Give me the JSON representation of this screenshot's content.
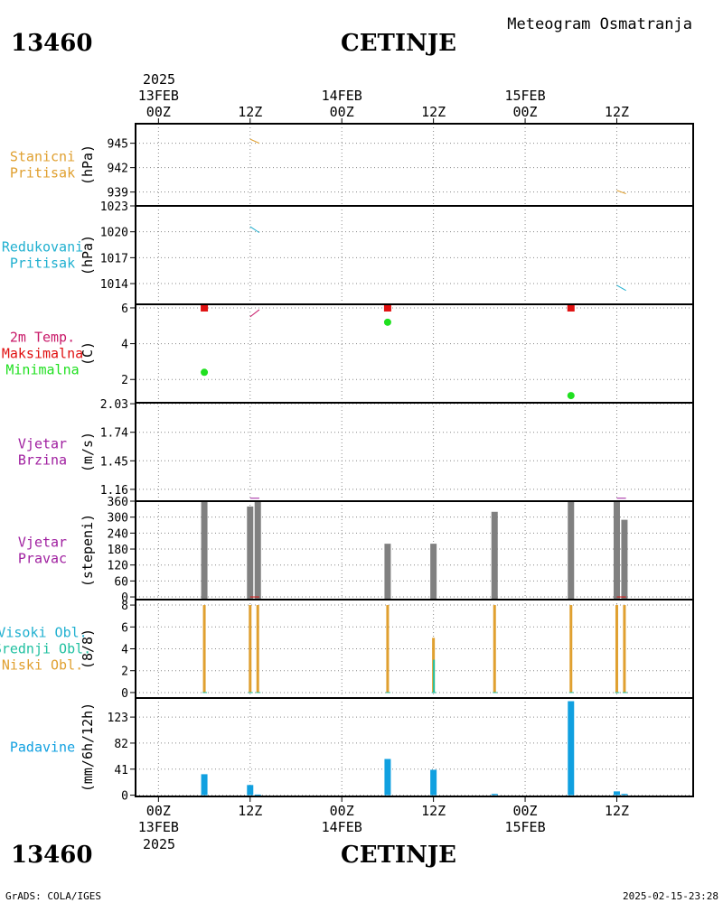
{
  "header": {
    "station_id": "13460",
    "station_name": "CETINJE",
    "chart_title": "Meteogram Osmatranja"
  },
  "footer": {
    "station_id": "13460",
    "station_name": "CETINJE",
    "credit": "GrADS: COLA/IGES",
    "timestamp": "2025-02-15-23:28"
  },
  "colors": {
    "station_pressure": "#e0a030",
    "reduced_pressure": "#20b0d0",
    "temp_line": "#c81868",
    "temp_max": "#e01010",
    "temp_min": "#20e020",
    "wind_speed": "#a020a0",
    "wind_dir": "#808080",
    "cloud_high": "#20b0d0",
    "cloud_mid": "#20c0a0",
    "cloud_low": "#e0a030",
    "precip": "#10a0e0",
    "precip_label": "#10a0e0"
  },
  "time_axis": {
    "top_year": "2025",
    "bottom_year": "2025",
    "ticks": [
      {
        "hour": 0,
        "label": "00Z",
        "date": "13FEB"
      },
      {
        "hour": 12,
        "label": "12Z",
        "date": ""
      },
      {
        "hour": 24,
        "label": "00Z",
        "date": "14FEB"
      },
      {
        "hour": 36,
        "label": "12Z",
        "date": ""
      },
      {
        "hour": 48,
        "label": "00Z",
        "date": "15FEB"
      },
      {
        "hour": 60,
        "label": "12Z",
        "date": ""
      }
    ],
    "range_hours": [
      -3,
      70
    ]
  },
  "chart_data": [
    {
      "id": "station_pressure",
      "type": "line",
      "labels": [
        "Stanicni",
        "Pritisak"
      ],
      "label_colors": [
        "#e0a030",
        "#e0a030"
      ],
      "ylabel": "(hPa)",
      "ylim": [
        937.3,
        947.4
      ],
      "yticks": [
        945,
        942,
        939
      ],
      "series": [
        {
          "segments": [
            [
              [
                12.0,
                945.5
              ],
              [
                13.2,
                945.0
              ]
            ],
            [
              [
                60.0,
                939.2
              ],
              [
                61.2,
                938.8
              ]
            ]
          ]
        }
      ]
    },
    {
      "id": "reduced_pressure",
      "type": "line",
      "labels": [
        "Redukovani",
        "Pritisak"
      ],
      "label_colors": [
        "#20b0d0",
        "#20b0d0"
      ],
      "ylabel": "(hPa)",
      "ylim": [
        1011.6,
        1023.0
      ],
      "yticks": [
        1023,
        1020,
        1017,
        1014
      ],
      "series": [
        {
          "segments": [
            [
              [
                12.0,
                1020.6
              ],
              [
                13.2,
                1019.9
              ]
            ],
            [
              [
                60.0,
                1013.8
              ],
              [
                61.2,
                1013.2
              ]
            ]
          ]
        }
      ]
    },
    {
      "id": "temperature",
      "type": "scatter",
      "labels": [
        "2m Temp.",
        "Maksimalna",
        "Minimalna"
      ],
      "label_colors": [
        "#c81868",
        "#e01010",
        "#20e020"
      ],
      "ylabel": "(C)",
      "ylim": [
        0.7,
        6.2
      ],
      "yticks": [
        6,
        4,
        2
      ],
      "line_segments": [
        [
          [
            12.0,
            5.5
          ],
          [
            13.2,
            5.9
          ]
        ]
      ],
      "max_points": [
        [
          6,
          6.0
        ],
        [
          30,
          6.0
        ],
        [
          54,
          6.0
        ]
      ],
      "min_points": [
        [
          6,
          2.4
        ],
        [
          30,
          5.2
        ],
        [
          54,
          1.1
        ]
      ]
    },
    {
      "id": "wind_speed",
      "type": "line",
      "labels": [
        "Vjetar",
        "Brzina"
      ],
      "label_colors": [
        "#a020a0",
        "#a020a0"
      ],
      "ylabel": "(m/s)",
      "ylim": [
        1.04,
        2.04
      ],
      "yticks": [
        2.03,
        1.74,
        1.45,
        1.16
      ],
      "series": [
        {
          "segments": [
            [
              [
                12.0,
                1.07
              ],
              [
                13.2,
                1.07
              ]
            ],
            [
              [
                60.0,
                1.07
              ],
              [
                61.2,
                1.07
              ]
            ]
          ]
        }
      ]
    },
    {
      "id": "wind_direction",
      "type": "bar",
      "labels": [
        "Vjetar",
        "Pravac"
      ],
      "label_colors": [
        "#a020a0",
        "#a020a0"
      ],
      "ylabel": "(stepeni)",
      "ylim": [
        -10,
        360
      ],
      "yticks": [
        360,
        300,
        240,
        180,
        120,
        60,
        0
      ],
      "x": [
        6,
        12,
        13,
        30,
        36,
        44,
        54,
        60,
        61
      ],
      "values": [
        360,
        340,
        360,
        200,
        200,
        320,
        360,
        360,
        290
      ]
    },
    {
      "id": "clouds",
      "type": "bar",
      "labels": [
        "Visoki Obl.",
        "Srednji Obl.",
        "Niski Obl."
      ],
      "label_colors": [
        "#20b0d0",
        "#20c0a0",
        "#e0a030"
      ],
      "ylabel": "(8/8)",
      "ylim": [
        -0.5,
        8.5
      ],
      "yticks": [
        8,
        6,
        4,
        2,
        0
      ],
      "x": [
        6,
        12,
        13,
        30,
        36,
        44,
        54,
        60,
        61
      ],
      "low": [
        8,
        8,
        8,
        8,
        5,
        8,
        8,
        8,
        8
      ],
      "mid": [
        0,
        0,
        0,
        0,
        3,
        0,
        0,
        0,
        0
      ]
    },
    {
      "id": "precip",
      "type": "bar",
      "labels": [
        "Padavine"
      ],
      "label_colors": [
        "#10a0e0"
      ],
      "ylabel": "(mm/6h/12h)",
      "ylim": [
        -2,
        153
      ],
      "yticks": [
        123,
        82,
        41,
        0
      ],
      "x": [
        6,
        12,
        13,
        30,
        36,
        44,
        54,
        60,
        61
      ],
      "values": [
        33,
        16,
        1,
        57,
        40,
        2,
        148,
        6,
        2
      ]
    }
  ]
}
